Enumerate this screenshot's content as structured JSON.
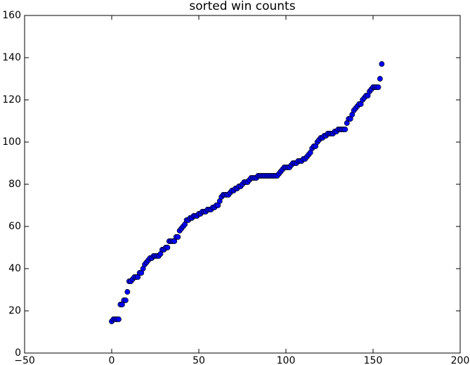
{
  "chart_data": {
    "type": "scatter",
    "title": "sorted win counts",
    "x": [
      0,
      1,
      2,
      3,
      4,
      5,
      6,
      7,
      8,
      9,
      10,
      11,
      12,
      13,
      14,
      15,
      16,
      17,
      18,
      19,
      20,
      21,
      22,
      23,
      24,
      25,
      26,
      27,
      28,
      29,
      30,
      31,
      32,
      33,
      34,
      35,
      36,
      37,
      38,
      39,
      40,
      41,
      42,
      43,
      44,
      45,
      46,
      47,
      48,
      49,
      50,
      51,
      52,
      53,
      54,
      55,
      56,
      57,
      58,
      59,
      60,
      61,
      62,
      63,
      64,
      65,
      66,
      67,
      68,
      69,
      70,
      71,
      72,
      73,
      74,
      75,
      76,
      77,
      78,
      79,
      80,
      81,
      82,
      83,
      84,
      85,
      86,
      87,
      88,
      89,
      90,
      91,
      92,
      93,
      94,
      95,
      96,
      97,
      98,
      99,
      100,
      101,
      102,
      103,
      104,
      105,
      106,
      107,
      108,
      109,
      110,
      111,
      112,
      113,
      114,
      115,
      116,
      117,
      118,
      119,
      120,
      121,
      122,
      123,
      124,
      125,
      126,
      127,
      128,
      129,
      130,
      131,
      132,
      133,
      134,
      135,
      136,
      137,
      138,
      139,
      140,
      141,
      142,
      143,
      144,
      145,
      146,
      147,
      148,
      149,
      150,
      151,
      152,
      153,
      154,
      155
    ],
    "values": [
      15,
      16,
      16,
      16,
      16,
      23,
      23,
      25,
      25,
      29,
      34,
      34,
      35,
      36,
      36,
      36,
      38,
      38,
      40,
      42,
      43,
      44,
      45,
      45,
      46,
      46,
      46,
      46,
      47,
      49,
      49,
      50,
      50,
      53,
      53,
      53,
      53,
      55,
      55,
      58,
      59,
      60,
      61,
      63,
      63,
      64,
      64,
      65,
      65,
      65,
      66,
      66,
      67,
      67,
      67,
      68,
      68,
      68,
      69,
      69,
      70,
      70,
      72,
      74,
      75,
      75,
      75,
      75,
      76,
      77,
      77,
      78,
      78,
      79,
      79,
      80,
      81,
      81,
      81,
      82,
      83,
      83,
      83,
      83,
      84,
      84,
      84,
      84,
      84,
      84,
      84,
      84,
      84,
      84,
      84,
      84,
      85,
      86,
      87,
      88,
      88,
      88,
      88,
      89,
      90,
      90,
      90,
      91,
      91,
      91,
      92,
      92,
      93,
      94,
      95,
      97,
      98,
      98,
      100,
      101,
      102,
      102,
      103,
      103,
      104,
      104,
      104,
      104,
      105,
      105,
      106,
      106,
      106,
      106,
      106,
      109,
      111,
      111,
      113,
      115,
      116,
      117,
      118,
      118,
      120,
      121,
      122,
      122,
      124,
      125,
      126,
      126,
      126,
      126,
      130,
      137
    ],
    "color": "#0000ff",
    "xlim": [
      -50,
      200
    ],
    "xticks": [
      {
        "value": -50,
        "label": "−50"
      },
      0,
      50,
      100,
      150,
      200
    ],
    "ylim": [
      0,
      160
    ],
    "yticks": [
      0,
      20,
      40,
      60,
      80,
      100,
      120,
      140,
      160
    ],
    "grid": false
  }
}
